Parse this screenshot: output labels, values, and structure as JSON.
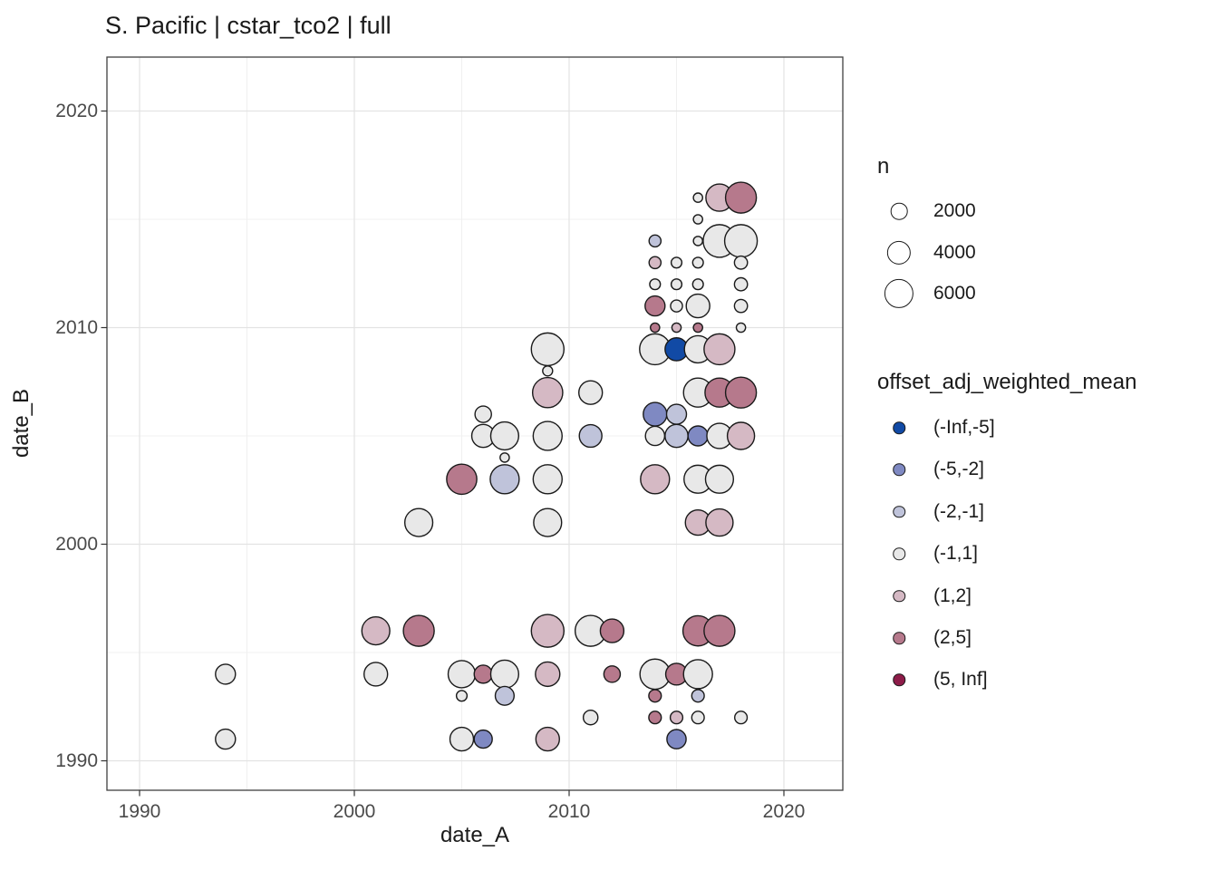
{
  "title": "S. Pacific | cstar_tco2 | full",
  "legend_size": {
    "title": "n",
    "entries": [
      {
        "label": "2000",
        "n": 2000
      },
      {
        "label": "4000",
        "n": 4000
      },
      {
        "label": "6000",
        "n": 6000
      }
    ]
  },
  "legend_color": {
    "title": "offset_adj_weighted_mean",
    "entries": [
      {
        "label": "(-Inf,-5]",
        "color": "#114aa5"
      },
      {
        "label": "(-5,-2]",
        "color": "#7f89c2"
      },
      {
        "label": "(-2,-1]",
        "color": "#bfc3da"
      },
      {
        "label": "(-1,1]",
        "color": "#e8e8e8"
      },
      {
        "label": "(1,2]",
        "color": "#d5b9c4"
      },
      {
        "label": "(2,5]",
        "color": "#b6798c"
      },
      {
        "label": "(5, Inf]",
        "color": "#8d1c49"
      }
    ]
  },
  "chart_data": {
    "type": "scatter",
    "title": "S. Pacific | cstar_tco2 | full",
    "xlabel": "date_A",
    "ylabel": "date_B",
    "xlim": [
      1988.5,
      2022.7
    ],
    "ylim": [
      1988.5,
      2022.5
    ],
    "x_major_ticks": [
      1990,
      2000,
      2010,
      2020
    ],
    "x_minor_ticks": [
      1995,
      2005,
      2015
    ],
    "y_major_ticks": [
      1990,
      2000,
      2010,
      2020
    ],
    "y_minor_ticks": [
      1995,
      2005,
      2015
    ],
    "grid": true,
    "legend_position": "right",
    "size_variable": "n",
    "color_variable": "offset_adj_weighted_mean",
    "point_columns": [
      "date_A",
      "date_B",
      "n",
      "offset_adj_weighted_mean_bin"
    ],
    "points": [
      [
        2016,
        2016,
        600,
        "(-1,1]"
      ],
      [
        2017,
        2016,
        5200,
        "(1,2]"
      ],
      [
        2018,
        2016,
        6700,
        "(2,5]"
      ],
      [
        2016,
        2015,
        600,
        "(-1,1]"
      ],
      [
        2014,
        2014,
        1000,
        "(-2,-1]"
      ],
      [
        2016,
        2014,
        600,
        "(-1,1]"
      ],
      [
        2017,
        2014,
        7500,
        "(-1,1]"
      ],
      [
        2018,
        2014,
        7500,
        "(-1,1]"
      ],
      [
        2014,
        2013,
        1000,
        "(1,2]"
      ],
      [
        2015,
        2013,
        800,
        "(-1,1]"
      ],
      [
        2016,
        2013,
        800,
        "(-1,1]"
      ],
      [
        2018,
        2013,
        1200,
        "(-1,1]"
      ],
      [
        2014,
        2012,
        800,
        "(-1,1]"
      ],
      [
        2015,
        2012,
        800,
        "(-1,1]"
      ],
      [
        2016,
        2012,
        800,
        "(-1,1]"
      ],
      [
        2018,
        2012,
        1200,
        "(-1,1]"
      ],
      [
        2014,
        2011,
        2800,
        "(2,5]"
      ],
      [
        2015,
        2011,
        1000,
        "(-1,1]"
      ],
      [
        2016,
        2011,
        3900,
        "(-1,1]"
      ],
      [
        2018,
        2011,
        1200,
        "(-1,1]"
      ],
      [
        2014,
        2010,
        600,
        "(2,5]"
      ],
      [
        2015,
        2010,
        600,
        "(1,2]"
      ],
      [
        2016,
        2010,
        600,
        "(2,5]"
      ],
      [
        2018,
        2010,
        600,
        "(-1,1]"
      ],
      [
        2014,
        2009,
        6700,
        "(-1,1]"
      ],
      [
        2015,
        2009,
        3700,
        "(-Inf,-5]"
      ],
      [
        2016,
        2009,
        5200,
        "(-1,1]"
      ],
      [
        2017,
        2009,
        6700,
        "(1,2]"
      ],
      [
        2016,
        2007,
        5900,
        "(-1,1]"
      ],
      [
        2017,
        2007,
        5900,
        "(2,5]"
      ],
      [
        2018,
        2007,
        6700,
        "(2,5]"
      ],
      [
        2014,
        2006,
        3900,
        "(-5,-2]"
      ],
      [
        2015,
        2006,
        2800,
        "(-2,-1]"
      ],
      [
        2014,
        2005,
        2600,
        "(-1,1]"
      ],
      [
        2015,
        2005,
        3700,
        "(-2,-1]"
      ],
      [
        2016,
        2005,
        2800,
        "(-5,-2]"
      ],
      [
        2017,
        2005,
        4500,
        "(-1,1]"
      ],
      [
        2018,
        2005,
        5200,
        "(1,2]"
      ],
      [
        2014,
        2003,
        5900,
        "(1,2]"
      ],
      [
        2016,
        2003,
        5500,
        "(-1,1]"
      ],
      [
        2017,
        2003,
        5500,
        "(-1,1]"
      ],
      [
        2016,
        2001,
        4500,
        "(1,2]"
      ],
      [
        2017,
        2001,
        5200,
        "(1,2]"
      ],
      [
        2016,
        1996,
        6400,
        "(2,5]"
      ],
      [
        2017,
        1996,
        6700,
        "(2,5]"
      ],
      [
        2009,
        2009,
        7500,
        "(-1,1]"
      ],
      [
        2009,
        2008,
        700,
        "(-1,1]"
      ],
      [
        2009,
        2007,
        6400,
        "(1,2]"
      ],
      [
        2011,
        2007,
        3900,
        "(-1,1]"
      ],
      [
        2006,
        2006,
        1900,
        "(-1,1]"
      ],
      [
        2006,
        2005,
        3700,
        "(-1,1]"
      ],
      [
        2007,
        2005,
        5500,
        "(-1,1]"
      ],
      [
        2009,
        2005,
        5900,
        "(-1,1]"
      ],
      [
        2011,
        2005,
        3600,
        "(-2,-1]"
      ],
      [
        2007,
        2004,
        600,
        "(-1,1]"
      ],
      [
        2005,
        2003,
        6400,
        "(2,5]"
      ],
      [
        2007,
        2003,
        5900,
        "(-2,-1]"
      ],
      [
        2009,
        2003,
        5900,
        "(-1,1]"
      ],
      [
        2003,
        2001,
        5500,
        "(-1,1]"
      ],
      [
        2009,
        2001,
        5500,
        "(-1,1]"
      ],
      [
        1994,
        1994,
        2800,
        "(-1,1]"
      ],
      [
        1994,
        1991,
        2800,
        "(-1,1]"
      ],
      [
        2001,
        1996,
        5500,
        "(1,2]"
      ],
      [
        2003,
        1996,
        6700,
        "(2,5]"
      ],
      [
        2009,
        1996,
        7500,
        "(1,2]"
      ],
      [
        2011,
        1996,
        6700,
        "(-1,1]"
      ],
      [
        2012,
        1996,
        3900,
        "(2,5]"
      ],
      [
        2001,
        1994,
        3900,
        "(-1,1]"
      ],
      [
        2005,
        1994,
        5200,
        "(-1,1]"
      ],
      [
        2006,
        1994,
        2300,
        "(2,5]"
      ],
      [
        2007,
        1994,
        5500,
        "(-1,1]"
      ],
      [
        2009,
        1994,
        4200,
        "(1,2]"
      ],
      [
        2012,
        1994,
        1900,
        "(2,5]"
      ],
      [
        2014,
        1994,
        6400,
        "(-1,1]"
      ],
      [
        2015,
        1994,
        3300,
        "(2,5]"
      ],
      [
        2016,
        1994,
        5900,
        "(-1,1]"
      ],
      [
        2005,
        1993,
        800,
        "(-1,1]"
      ],
      [
        2007,
        1993,
        2500,
        "(-2,-1]"
      ],
      [
        2014,
        1993,
        1100,
        "(2,5]"
      ],
      [
        2016,
        1993,
        1100,
        "(-2,-1]"
      ],
      [
        2011,
        1992,
        1500,
        "(-1,1]"
      ],
      [
        2014,
        1992,
        1100,
        "(2,5]"
      ],
      [
        2015,
        1992,
        1100,
        "(1,2]"
      ],
      [
        2016,
        1992,
        1100,
        "(-1,1]"
      ],
      [
        2018,
        1992,
        1100,
        "(-1,1]"
      ],
      [
        2005,
        1991,
        3900,
        "(-1,1]"
      ],
      [
        2006,
        1991,
        2300,
        "(-5,-2]"
      ],
      [
        2009,
        1991,
        3900,
        "(1,2]"
      ],
      [
        2015,
        1991,
        2600,
        "(-5,-2]"
      ]
    ]
  },
  "style_colors": {
    "panel_border": "#404040",
    "grid_major": "#e3e3e3",
    "grid_minor": "#f0f0f0",
    "point_outline": "#1a1a1a"
  }
}
